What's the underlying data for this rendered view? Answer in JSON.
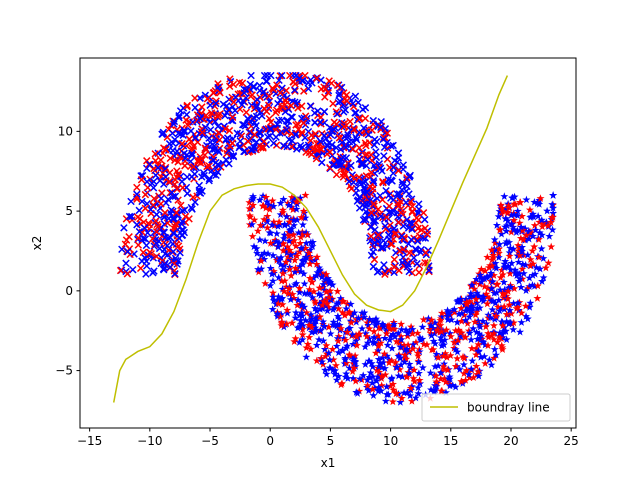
{
  "chart_data": {
    "type": "scatter",
    "xlabel": "x1",
    "ylabel": "x2",
    "xlim": [
      -15.8,
      25.4
    ],
    "ylim": [
      -8.6,
      14.6
    ],
    "xticks": [
      -15,
      -10,
      -5,
      0,
      5,
      10,
      15,
      20,
      25
    ],
    "yticks": [
      -5,
      0,
      5,
      10
    ],
    "grid": false,
    "legend": {
      "placement": "lower-right",
      "entries": [
        "boundray line"
      ]
    },
    "colors": {
      "red": "#ff0000",
      "blue": "#0000ff",
      "boundary": "#bfbf00"
    },
    "markers": {
      "upper_moon": "x",
      "lower_moon": "*"
    },
    "upper_moon": {
      "shape": "half-circle arc",
      "x_range": [
        -13.5,
        13.5
      ],
      "y_range": [
        -0.6,
        13.5
      ],
      "center": [
        0.5,
        1.0
      ],
      "radius_range": [
        8.0,
        13.0
      ],
      "count": 1200
    },
    "lower_moon": {
      "shape": "inverted half-circle arc",
      "x_range": [
        -3.5,
        23.5
      ],
      "y_range": [
        -7.5,
        6.6
      ],
      "center": [
        11.0,
        6.0
      ],
      "radius_range": [
        8.0,
        13.0
      ],
      "count": 1200
    },
    "series": [
      {
        "name": "boundray line",
        "type": "line",
        "x": [
          -13.0,
          -12.5,
          -12.0,
          -11.0,
          -10.0,
          -9.0,
          -8.0,
          -7.0,
          -6.0,
          -5.0,
          -4.0,
          -3.0,
          -2.0,
          -1.0,
          0.0,
          1.0,
          2.0,
          3.0,
          4.0,
          5.0,
          6.0,
          7.0,
          8.0,
          9.0,
          10.0,
          11.0,
          12.0,
          13.0,
          14.0,
          15.0,
          16.0,
          17.0,
          18.0,
          19.0,
          19.7
        ],
        "y": [
          -7.0,
          -5.0,
          -4.3,
          -3.8,
          -3.5,
          -2.7,
          -1.3,
          0.7,
          3.0,
          5.0,
          6.0,
          6.4,
          6.6,
          6.7,
          6.7,
          6.5,
          6.0,
          5.2,
          4.0,
          2.5,
          1.0,
          -0.2,
          -0.9,
          -1.2,
          -1.3,
          -0.9,
          0.0,
          1.5,
          3.2,
          5.0,
          6.8,
          8.5,
          10.2,
          12.3,
          13.5
        ]
      }
    ]
  }
}
